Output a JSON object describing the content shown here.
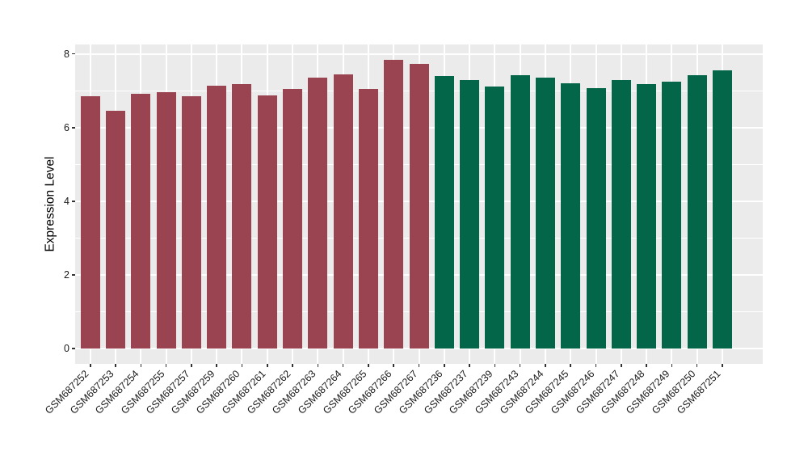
{
  "chart_data": {
    "type": "bar",
    "title": "",
    "xlabel": "",
    "ylabel": "Expression Level",
    "ylim": [
      -0.4,
      8.23
    ],
    "yticks": [
      0,
      2,
      4,
      6,
      8
    ],
    "yminorticks": [
      1,
      3,
      5,
      7
    ],
    "grid": "white major+minor horizontal, white major vertical, on gray panel",
    "legend_position": "none",
    "panel_bg": "#EBEBEB",
    "grid_color": "#FFFFFF",
    "group_colors": {
      "groupA": "#9B4451",
      "groupB": "#046649"
    },
    "bars": [
      {
        "label": "GSM687252",
        "value": 6.86,
        "group": "groupA"
      },
      {
        "label": "GSM687253",
        "value": 6.45,
        "group": "groupA"
      },
      {
        "label": "GSM687254",
        "value": 6.92,
        "group": "groupA"
      },
      {
        "label": "GSM687255",
        "value": 6.96,
        "group": "groupA"
      },
      {
        "label": "GSM687257",
        "value": 6.85,
        "group": "groupA"
      },
      {
        "label": "GSM687259",
        "value": 7.14,
        "group": "groupA"
      },
      {
        "label": "GSM687260",
        "value": 7.18,
        "group": "groupA"
      },
      {
        "label": "GSM687261",
        "value": 6.88,
        "group": "groupA"
      },
      {
        "label": "GSM687262",
        "value": 7.05,
        "group": "groupA"
      },
      {
        "label": "GSM687263",
        "value": 7.35,
        "group": "groupA"
      },
      {
        "label": "GSM687264",
        "value": 7.45,
        "group": "groupA"
      },
      {
        "label": "GSM687265",
        "value": 7.04,
        "group": "groupA"
      },
      {
        "label": "GSM687266",
        "value": 7.84,
        "group": "groupA"
      },
      {
        "label": "GSM687267",
        "value": 7.72,
        "group": "groupA"
      },
      {
        "label": "GSM687236",
        "value": 7.4,
        "group": "groupB"
      },
      {
        "label": "GSM687237",
        "value": 7.28,
        "group": "groupB"
      },
      {
        "label": "GSM687239",
        "value": 7.11,
        "group": "groupB"
      },
      {
        "label": "GSM687243",
        "value": 7.42,
        "group": "groupB"
      },
      {
        "label": "GSM687244",
        "value": 7.35,
        "group": "groupB"
      },
      {
        "label": "GSM687245",
        "value": 7.2,
        "group": "groupB"
      },
      {
        "label": "GSM687246",
        "value": 7.08,
        "group": "groupB"
      },
      {
        "label": "GSM687247",
        "value": 7.28,
        "group": "groupB"
      },
      {
        "label": "GSM687248",
        "value": 7.19,
        "group": "groupB"
      },
      {
        "label": "GSM687249",
        "value": 7.24,
        "group": "groupB"
      },
      {
        "label": "GSM687250",
        "value": 7.42,
        "group": "groupB"
      },
      {
        "label": "GSM687251",
        "value": 7.56,
        "group": "groupB"
      }
    ]
  }
}
